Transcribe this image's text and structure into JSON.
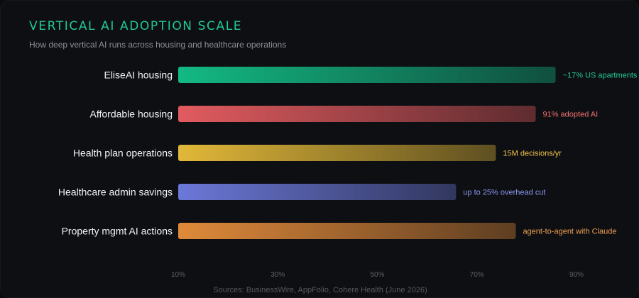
{
  "header": {
    "title": "VERTICAL AI ADOPTION SCALE",
    "subtitle": "How deep vertical AI runs across housing and healthcare operations"
  },
  "footer": {
    "source": "Sources: BusinessWire, AppFolio, Cohere Health (June 2026)"
  },
  "chart_data": {
    "type": "bar",
    "orientation": "horizontal",
    "title": "VERTICAL AI ADOPTION SCALE",
    "subtitle": "How deep vertical AI runs across housing and healthcare operations",
    "xlim": [
      10,
      90
    ],
    "x_ticks": [
      "10%",
      "30%",
      "50%",
      "70%",
      "90%"
    ],
    "x_tick_values": [
      10,
      30,
      50,
      70,
      90
    ],
    "grid": false,
    "categories": [
      "EliseAI housing",
      "Affordable housing",
      "Health plan operations",
      "Healthcare admin savings",
      "Property mgmt AI actions"
    ],
    "values": [
      85.8,
      81.8,
      73.8,
      65.8,
      77.8
    ],
    "data_labels": [
      "~17% US apartments",
      "91% adopted AI",
      "15M decisions/yr",
      "up to 25% overhead cut",
      "agent-to-agent with Claude"
    ],
    "colors": [
      "#13b983",
      "#e15b5f",
      "#e1b838",
      "#6b78d8",
      "#e08a3a"
    ],
    "label_colors": [
      "#21c995",
      "#f07171",
      "#f1c548",
      "#8d98f0",
      "#f0a050"
    ]
  }
}
